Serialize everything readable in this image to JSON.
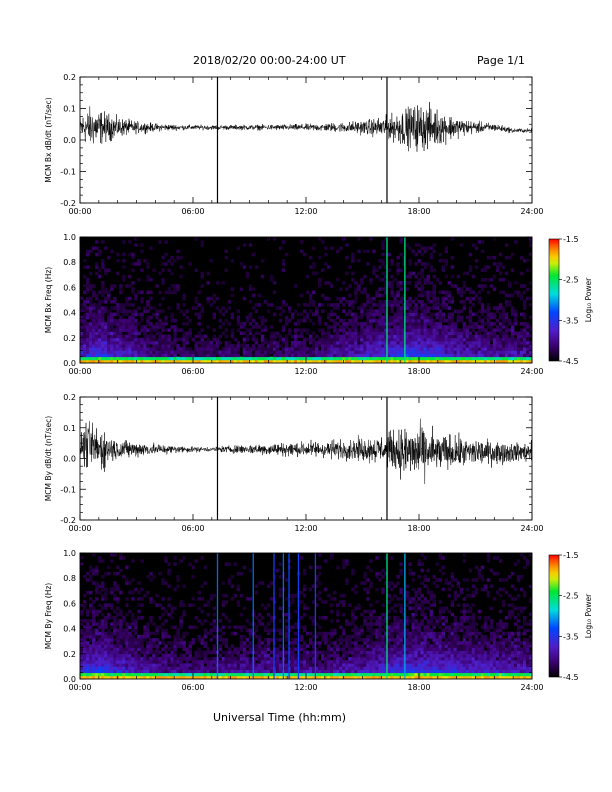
{
  "header": {
    "date_range": "2018/02/20  00:00-24:00 UT",
    "page": "Page 1/1"
  },
  "footer": {
    "xlabel": "Universal Time (hh:mm)"
  },
  "chart_data": [
    {
      "type": "line",
      "ylabel": "MCM Bx dB/dt (nT/sec)",
      "ylim": [
        -0.2,
        0.2
      ],
      "yticks": [
        "0.2",
        "0.1",
        "0.0",
        "-0.1",
        "-0.2"
      ],
      "yticks_values": [
        0.2,
        0.1,
        0.0,
        -0.1,
        -0.2
      ],
      "xticks": [
        "00:00",
        "06:00",
        "12:00",
        "18:00",
        "24:00"
      ],
      "xlim": [
        0,
        24
      ],
      "series": [
        {
          "x": [
            0,
            0.5,
            1,
            1.5,
            2,
            3,
            4,
            5,
            6,
            7,
            8,
            9,
            10,
            11,
            12,
            13,
            14,
            15,
            16,
            16.5,
            17,
            17.5,
            18,
            18.5,
            19,
            20,
            21,
            22,
            23,
            24
          ],
          "center": [
            0.04,
            0.04,
            0.04,
            0.04,
            0.04,
            0.04,
            0.04,
            0.04,
            0.04,
            0.04,
            0.04,
            0.04,
            0.04,
            0.04,
            0.04,
            0.04,
            0.04,
            0.04,
            0.04,
            0.04,
            0.04,
            0.04,
            0.04,
            0.04,
            0.04,
            0.04,
            0.04,
            0.04,
            0.03,
            0.03
          ],
          "amplitude": [
            0.06,
            0.1,
            0.09,
            0.07,
            0.05,
            0.03,
            0.02,
            0.015,
            0.012,
            0.012,
            0.012,
            0.013,
            0.014,
            0.015,
            0.017,
            0.02,
            0.025,
            0.035,
            0.05,
            0.06,
            0.09,
            0.1,
            0.12,
            0.11,
            0.09,
            0.05,
            0.03,
            0.02,
            0.012,
            0.01
          ]
        }
      ],
      "spikes": [
        {
          "x": 7.3,
          "ymin": -0.2,
          "ymax": 0.2
        },
        {
          "x": 16.3,
          "ymin": -0.2,
          "ymax": 0.2
        }
      ]
    },
    {
      "type": "heatmap",
      "ylabel": "MCM Bx Freq (Hz)",
      "ylim": [
        0.0,
        1.0
      ],
      "yticks": [
        "1.0",
        "0.8",
        "0.6",
        "0.4",
        "0.2",
        "0.0"
      ],
      "yticks_values": [
        1.0,
        0.8,
        0.6,
        0.4,
        0.2,
        0.0
      ],
      "xticks": [
        "00:00",
        "06:00",
        "12:00",
        "18:00",
        "24:00"
      ],
      "xlim": [
        0,
        24
      ],
      "colorbar": {
        "label": "Log₁₀ Power",
        "range": [
          -4.5,
          -1.5
        ],
        "ticks": [
          "-1.5",
          "-2.5",
          "-3.5",
          "-4.5"
        ],
        "ticks_values": [
          -1.5,
          -2.5,
          -3.5,
          -4.5
        ]
      },
      "activity_profile": {
        "x": [
          0,
          1,
          2,
          4,
          6,
          8,
          10,
          12,
          13,
          14,
          15,
          16,
          17,
          18,
          19,
          20,
          22,
          24
        ],
        "level": [
          0.45,
          0.6,
          0.45,
          0.3,
          0.2,
          0.2,
          0.22,
          0.25,
          0.3,
          0.4,
          0.45,
          0.5,
          0.6,
          0.6,
          0.55,
          0.45,
          0.35,
          0.35
        ]
      },
      "spikes": [
        {
          "x": 16.3,
          "value": -2.6
        },
        {
          "x": 17.25,
          "value": -2.6
        }
      ]
    },
    {
      "type": "line",
      "ylabel": "MCM By dB/dt (nT/sec)",
      "ylim": [
        -0.2,
        0.2
      ],
      "yticks": [
        "0.2",
        "0.1",
        "0.0",
        "-0.1",
        "-0.2"
      ],
      "yticks_values": [
        0.2,
        0.1,
        0.0,
        -0.1,
        -0.2
      ],
      "xticks": [
        "00:00",
        "06:00",
        "12:00",
        "18:00",
        "24:00"
      ],
      "xlim": [
        0,
        24
      ],
      "series": [
        {
          "x": [
            0,
            0.5,
            1,
            1.5,
            2,
            3,
            4,
            5,
            6,
            7,
            8,
            9,
            10,
            11,
            12,
            13,
            14,
            15,
            16,
            16.5,
            17,
            17.5,
            18,
            18.5,
            19,
            20,
            21,
            22,
            23,
            24
          ],
          "center": [
            0.04,
            0.04,
            0.03,
            0.03,
            0.03,
            0.03,
            0.03,
            0.03,
            0.03,
            0.03,
            0.03,
            0.03,
            0.03,
            0.03,
            0.03,
            0.03,
            0.03,
            0.03,
            0.03,
            0.03,
            0.02,
            0.02,
            0.02,
            0.02,
            0.02,
            0.02,
            0.02,
            0.02,
            0.02,
            0.02
          ],
          "amplitude": [
            0.08,
            0.12,
            0.12,
            0.08,
            0.05,
            0.04,
            0.03,
            0.02,
            0.015,
            0.012,
            0.02,
            0.025,
            0.03,
            0.035,
            0.04,
            0.045,
            0.05,
            0.06,
            0.07,
            0.09,
            0.12,
            0.14,
            0.13,
            0.12,
            0.1,
            0.08,
            0.07,
            0.06,
            0.05,
            0.05
          ]
        }
      ],
      "spikes": [
        {
          "x": 7.3,
          "ymin": -0.2,
          "ymax": 0.2
        },
        {
          "x": 16.3,
          "ymin": -0.2,
          "ymax": 0.2
        }
      ]
    },
    {
      "type": "heatmap",
      "ylabel": "MCM By Freq (Hz)",
      "ylim": [
        0.0,
        1.0
      ],
      "yticks": [
        "1.0",
        "0.8",
        "0.6",
        "0.4",
        "0.2",
        "0.0"
      ],
      "yticks_values": [
        1.0,
        0.8,
        0.6,
        0.4,
        0.2,
        0.0
      ],
      "xticks": [
        "00:00",
        "06:00",
        "12:00",
        "18:00",
        "24:00"
      ],
      "xlim": [
        0,
        24
      ],
      "colorbar": {
        "label": "Log₁₀ Power",
        "range": [
          -4.5,
          -1.5
        ],
        "ticks": [
          "-1.5",
          "-2.5",
          "-3.5",
          "-4.5"
        ],
        "ticks_values": [
          -1.5,
          -2.5,
          -3.5,
          -4.5
        ]
      },
      "activity_profile": {
        "x": [
          0,
          1,
          2,
          4,
          6,
          8,
          10,
          12,
          13,
          14,
          15,
          16,
          17,
          18,
          19,
          20,
          22,
          24
        ],
        "level": [
          0.5,
          0.65,
          0.5,
          0.35,
          0.25,
          0.3,
          0.35,
          0.3,
          0.3,
          0.35,
          0.4,
          0.5,
          0.55,
          0.6,
          0.55,
          0.5,
          0.45,
          0.4
        ]
      },
      "spikes": [
        {
          "x": 7.3,
          "value": -3.2
        },
        {
          "x": 9.2,
          "value": -3.2
        },
        {
          "x": 10.3,
          "value": -3.4
        },
        {
          "x": 10.8,
          "value": -3.2
        },
        {
          "x": 11.1,
          "value": -3.3
        },
        {
          "x": 11.6,
          "value": -3.4
        },
        {
          "x": 12.5,
          "value": -3.4
        },
        {
          "x": 16.3,
          "value": -2.6
        },
        {
          "x": 17.25,
          "value": -3.0
        }
      ]
    }
  ]
}
